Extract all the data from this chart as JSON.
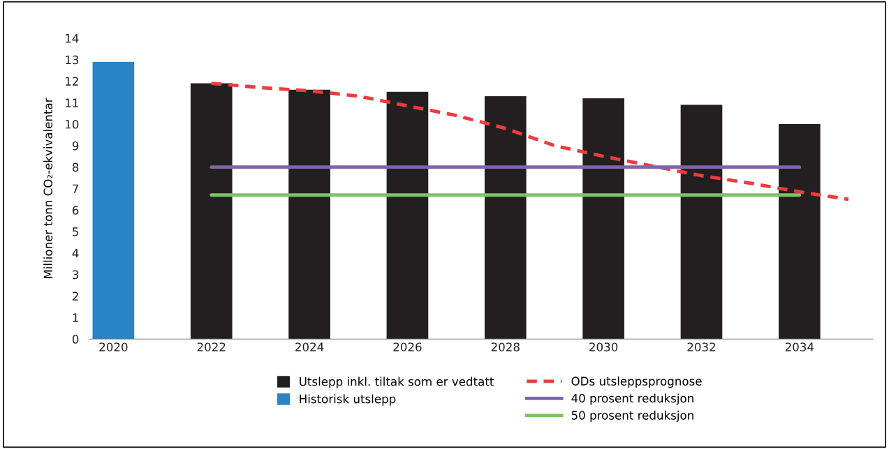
{
  "chart_data": {
    "type": "bar",
    "ylabel": "Millioner tonn CO₂-ekvivalentar",
    "xlim": [
      2019.5,
      2035.5
    ],
    "xticks": [
      2020,
      2022,
      2024,
      2026,
      2028,
      2030,
      2032,
      2034
    ],
    "ylim": [
      0,
      14
    ],
    "yticks": [
      0,
      1,
      2,
      3,
      4,
      5,
      6,
      7,
      8,
      9,
      10,
      11,
      12,
      13,
      14
    ],
    "grid": false,
    "legend": "bottom",
    "series": [
      {
        "name": "Utslepp inkl. tiltak som er vedtatt",
        "color": "#231f20",
        "x": [
          2022,
          2024,
          2026,
          2028,
          2030,
          2032,
          2034
        ],
        "values": [
          11.9,
          11.6,
          11.5,
          11.3,
          11.2,
          10.9,
          10.0
        ]
      },
      {
        "name": "Historisk utslepp",
        "color": "#2884c5",
        "x": [
          2020
        ],
        "values": [
          12.9
        ]
      },
      {
        "name": "ODs utsleppsprognose",
        "type": "line",
        "line_style": "dashed",
        "color": "#ef3b3f",
        "x": [
          2022,
          2023,
          2024,
          2025,
          2026,
          2027,
          2028,
          2029,
          2030,
          2031,
          2032,
          2033,
          2034,
          2035
        ],
        "values": [
          11.9,
          11.7,
          11.55,
          11.3,
          10.85,
          10.4,
          9.8,
          9.0,
          8.5,
          8.05,
          7.6,
          7.25,
          6.85,
          6.5
        ]
      },
      {
        "name": "40 prosent reduksjon",
        "type": "line",
        "line_style": "solid",
        "color": "#7f65a9",
        "x": [
          2022,
          2034
        ],
        "values": [
          8.0,
          8.0
        ]
      },
      {
        "name": "50 prosent reduksjon",
        "type": "line",
        "line_style": "solid",
        "color": "#7dc462",
        "x": [
          2022,
          2034
        ],
        "values": [
          6.7,
          6.7
        ]
      }
    ]
  }
}
